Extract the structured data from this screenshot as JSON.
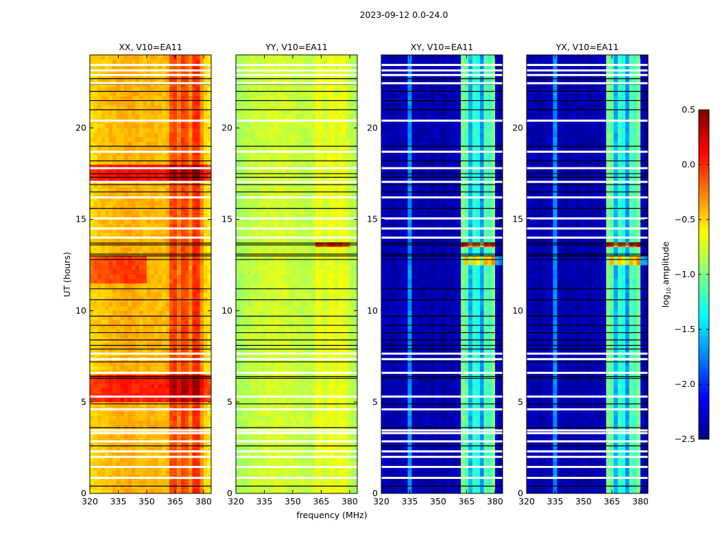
{
  "chart_data": {
    "type": "heatmap",
    "suptitle": "2023-09-12 0.0-24.0",
    "xlabel": "frequency (MHz)",
    "ylabel": "UT (hours)",
    "xlim": [
      320,
      384
    ],
    "ylim": [
      0,
      24
    ],
    "xticks": [
      "320",
      "335",
      "350",
      "365",
      "380"
    ],
    "yticks": [
      "0",
      "5",
      "10",
      "15",
      "20"
    ],
    "freq_bin_start": 320,
    "freq_bin_width": 2,
    "time_bin_width": 0.25,
    "colorbar": {
      "label": "log10 amplitude",
      "label_main": "log",
      "label_sub": "10",
      "label_rest": " amplitude",
      "range": [
        -2.5,
        0.5
      ],
      "ticks": [
        "0.5",
        "0.0",
        "−0.5",
        "−1.0",
        "−1.5",
        "−2.0",
        "−2.5"
      ],
      "tick_values": [
        0.5,
        0.0,
        -0.5,
        -1.0,
        -1.5,
        -2.0,
        -2.5
      ],
      "colormap": "jet"
    },
    "flagged_hours": [
      0.85,
      1.45,
      2.0,
      2.3,
      2.85,
      3.3,
      3.45,
      4.6,
      5.3,
      6.6,
      7.35,
      7.65,
      14.0,
      14.5,
      15.05,
      16.2,
      17.05,
      17.8,
      18.7,
      20.4,
      22.45,
      22.9,
      23.15,
      23.45
    ],
    "black_line_hours": [
      0.4,
      2.6,
      3.6,
      4.9,
      6.3,
      6.4,
      7.2,
      7.9,
      8.1,
      8.4,
      8.8,
      9.2,
      9.7,
      10.6,
      11.2,
      12.8,
      13.0,
      13.1,
      13.6,
      13.7,
      15.6,
      16.5,
      16.9,
      17.3,
      17.5,
      18.2,
      19.0,
      21.0,
      21.5,
      22.0,
      22.4,
      22.7
    ],
    "panels": [
      {
        "title": "XX, V10=EA11",
        "freq_profile": [
          -0.5,
          -0.5,
          -0.47,
          -0.45,
          -0.45,
          -0.42,
          -0.42,
          -0.4,
          -0.4,
          -0.38,
          -0.38,
          -0.4,
          -0.4,
          -0.42,
          -0.42,
          -0.4,
          -0.4,
          -0.42,
          -0.42,
          -0.45,
          -0.4,
          -0.1,
          -0.05,
          -0.25,
          -0.05,
          -0.1,
          -0.3,
          0.0,
          0.0,
          -0.3,
          -0.5,
          -0.55
        ],
        "events": [
          {
            "t": [
              4.9,
              6.4
            ],
            "f": [
              320,
              384
            ],
            "delta": 0.45
          },
          {
            "t": [
              11.5,
              13.0
            ],
            "f": [
              320,
              350
            ],
            "delta": 0.35
          },
          {
            "t": [
              17.0,
              18.0
            ],
            "f": [
              320,
              384
            ],
            "delta": 0.5
          }
        ]
      },
      {
        "title": "YY, V10=EA11",
        "freq_profile": [
          -0.9,
          -0.88,
          -0.85,
          -0.83,
          -0.8,
          -0.8,
          -0.78,
          -0.78,
          -0.76,
          -0.76,
          -0.75,
          -0.75,
          -0.76,
          -0.76,
          -0.78,
          -0.78,
          -0.8,
          -0.8,
          -0.82,
          -0.82,
          -0.8,
          -0.65,
          -0.7,
          -0.75,
          -0.7,
          -0.65,
          -0.75,
          -0.65,
          -0.7,
          -0.75,
          -0.82,
          -0.88
        ],
        "events": [
          {
            "t": [
              13.4,
              13.6
            ],
            "f": [
              362,
              380
            ],
            "delta": 0.65
          }
        ]
      },
      {
        "title": "XY, V10=EA11",
        "freq_profile": [
          -2.3,
          -2.35,
          -2.35,
          -2.4,
          -2.35,
          -2.35,
          -2.3,
          -1.7,
          -2.35,
          -2.35,
          -2.4,
          -2.35,
          -2.35,
          -2.4,
          -2.35,
          -2.35,
          -2.4,
          -2.35,
          -2.35,
          -2.35,
          -2.3,
          -1.0,
          -1.1,
          -1.6,
          -1.2,
          -1.3,
          -1.7,
          -1.1,
          -1.2,
          -1.0,
          -2.3,
          -2.4
        ],
        "events": [
          {
            "t": [
              13.4,
              13.6
            ],
            "f": [
              362,
              380
            ],
            "delta": 1.1
          },
          {
            "t": [
              12.4,
              13.0
            ],
            "f": [
              364,
              384
            ],
            "delta": 0.7
          }
        ]
      },
      {
        "title": "YX, V10=EA11",
        "freq_profile": [
          -2.3,
          -2.35,
          -2.35,
          -2.4,
          -2.35,
          -2.35,
          -2.3,
          -1.7,
          -2.35,
          -2.35,
          -2.4,
          -2.35,
          -2.35,
          -2.4,
          -2.35,
          -2.35,
          -2.4,
          -2.35,
          -2.35,
          -2.35,
          -2.3,
          -1.0,
          -1.1,
          -1.6,
          -1.2,
          -1.3,
          -1.7,
          -1.1,
          -1.2,
          -1.0,
          -2.3,
          -2.4
        ],
        "events": [
          {
            "t": [
              13.4,
              13.6
            ],
            "f": [
              362,
              380
            ],
            "delta": 1.1
          },
          {
            "t": [
              12.4,
              13.0
            ],
            "f": [
              364,
              384
            ],
            "delta": 0.7
          }
        ]
      }
    ]
  }
}
